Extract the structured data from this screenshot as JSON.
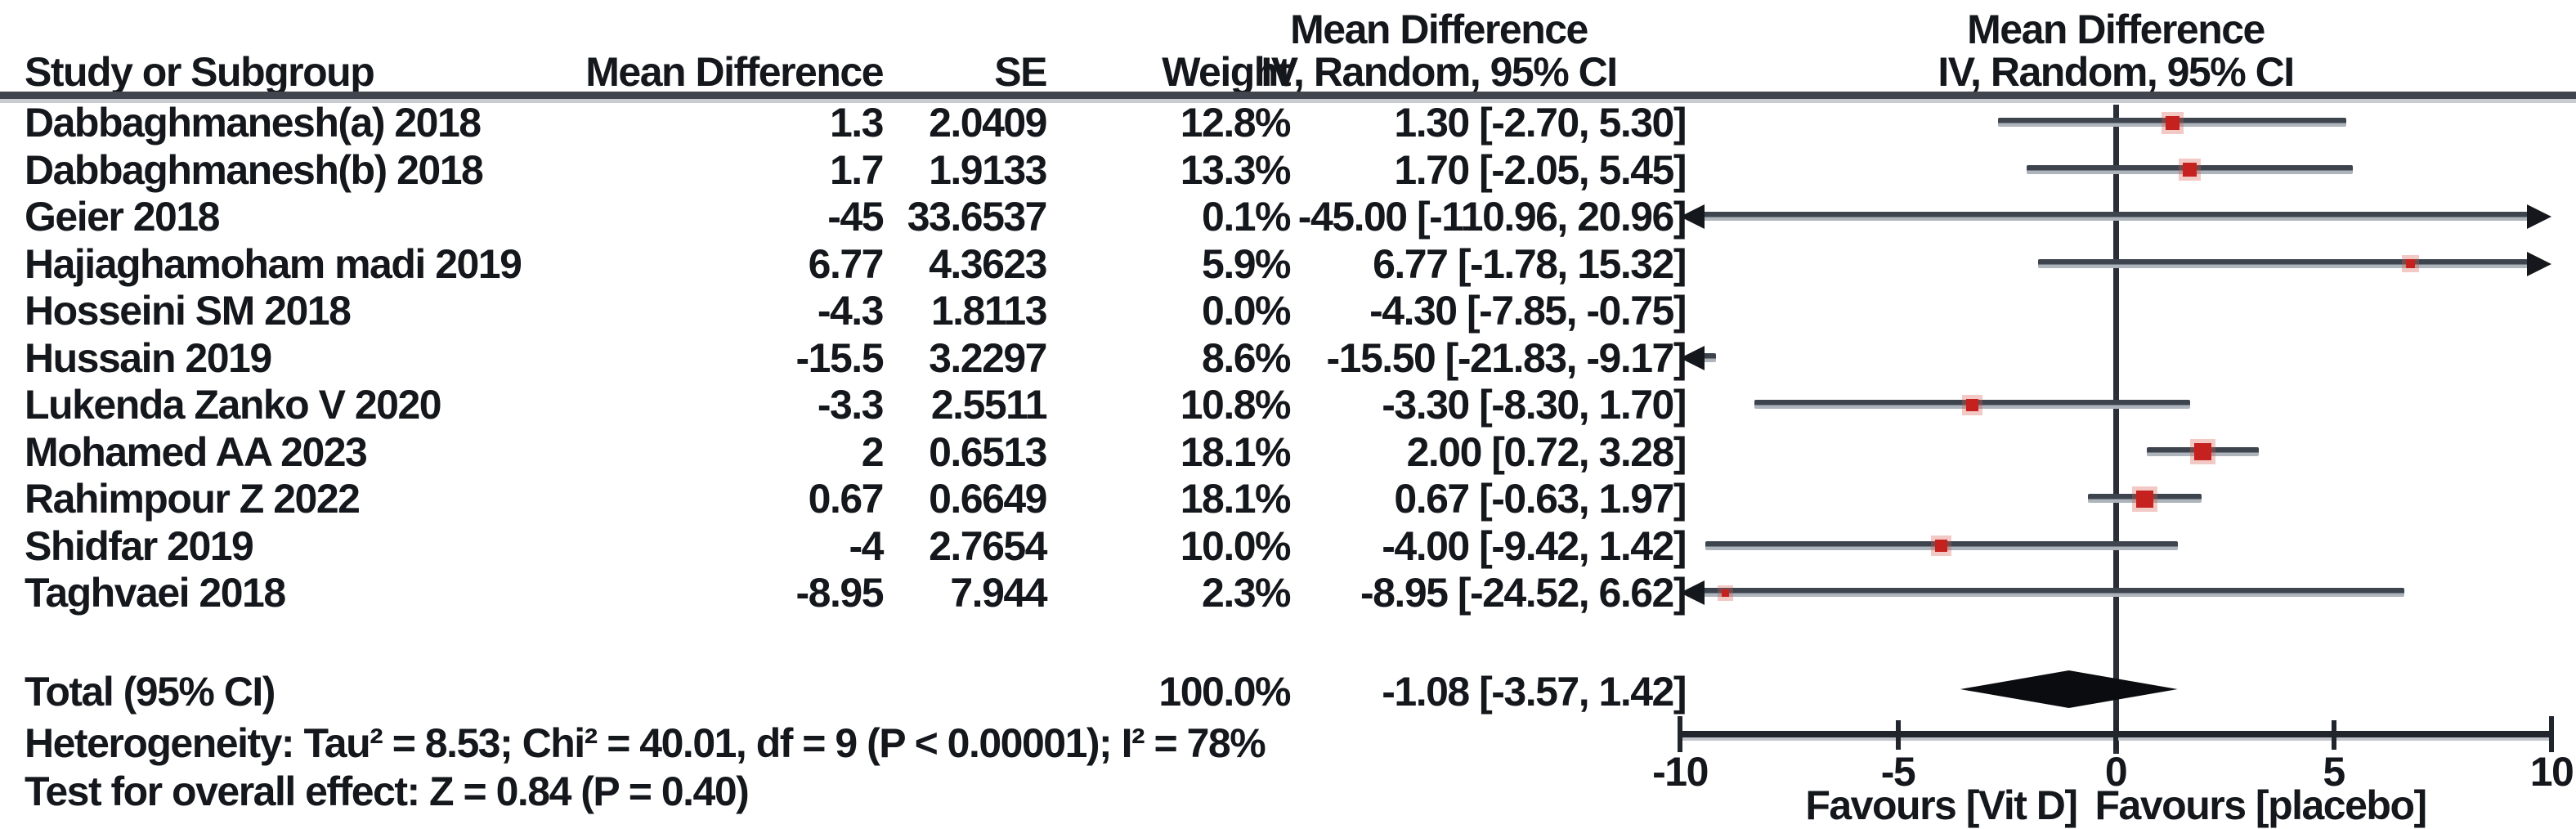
{
  "chart_data": {
    "type": "forest",
    "table_headers": {
      "study": "Study or Subgroup",
      "mean_difference": "Mean Difference",
      "se": "SE",
      "weight": "Weight",
      "effect_line1": "Mean Difference",
      "effect_line2": "IV, Random, 95% CI"
    },
    "studies": [
      {
        "name": "Dabbaghmanesh(a) 2018",
        "md_text": "1.3",
        "se_text": "2.0409",
        "weight_text": "12.8%",
        "ci_text": "1.30 [-2.70, 5.30]",
        "est": 1.3,
        "lo": -2.7,
        "hi": 5.3,
        "weight_pct": 12.8,
        "plotted": true
      },
      {
        "name": "Dabbaghmanesh(b) 2018",
        "md_text": "1.7",
        "se_text": "1.9133",
        "weight_text": "13.3%",
        "ci_text": "1.70 [-2.05, 5.45]",
        "est": 1.7,
        "lo": -2.05,
        "hi": 5.45,
        "weight_pct": 13.3,
        "plotted": true
      },
      {
        "name": "Geier 2018",
        "md_text": "-45",
        "se_text": "33.6537",
        "weight_text": "0.1%",
        "ci_text": "-45.00 [-110.96, 20.96]",
        "est": -45,
        "lo": -110.96,
        "hi": 20.96,
        "weight_pct": 0.1,
        "plotted": true
      },
      {
        "name": "Hajiaghamoham madi 2019",
        "md_text": "6.77",
        "se_text": "4.3623",
        "weight_text": "5.9%",
        "ci_text": "6.77 [-1.78, 15.32]",
        "est": 6.77,
        "lo": -1.78,
        "hi": 15.32,
        "weight_pct": 5.9,
        "plotted": true
      },
      {
        "name": "Hosseini SM 2018",
        "md_text": "-4.3",
        "se_text": "1.8113",
        "weight_text": "0.0%",
        "ci_text": "-4.30 [-7.85, -0.75]",
        "est": -4.3,
        "lo": -7.85,
        "hi": -0.75,
        "weight_pct": 0.0,
        "plotted": false
      },
      {
        "name": "Hussain 2019",
        "md_text": "-15.5",
        "se_text": "3.2297",
        "weight_text": "8.6%",
        "ci_text": "-15.50 [-21.83, -9.17]",
        "est": -15.5,
        "lo": -21.83,
        "hi": -9.17,
        "weight_pct": 8.6,
        "plotted": true
      },
      {
        "name": "Lukenda Zanko V 2020",
        "md_text": "-3.3",
        "se_text": "2.5511",
        "weight_text": "10.8%",
        "ci_text": "-3.30 [-8.30, 1.70]",
        "est": -3.3,
        "lo": -8.3,
        "hi": 1.7,
        "weight_pct": 10.8,
        "plotted": true
      },
      {
        "name": "Mohamed AA 2023",
        "md_text": "2",
        "se_text": "0.6513",
        "weight_text": "18.1%",
        "ci_text": "2.00 [0.72, 3.28]",
        "est": 2,
        "lo": 0.72,
        "hi": 3.28,
        "weight_pct": 18.1,
        "plotted": true
      },
      {
        "name": "Rahimpour Z 2022",
        "md_text": "0.67",
        "se_text": "0.6649",
        "weight_text": "18.1%",
        "ci_text": "0.67 [-0.63, 1.97]",
        "est": 0.67,
        "lo": -0.63,
        "hi": 1.97,
        "weight_pct": 18.1,
        "plotted": true
      },
      {
        "name": "Shidfar 2019",
        "md_text": "-4",
        "se_text": "2.7654",
        "weight_text": "10.0%",
        "ci_text": "-4.00 [-9.42, 1.42]",
        "est": -4,
        "lo": -9.42,
        "hi": 1.42,
        "weight_pct": 10.0,
        "plotted": true
      },
      {
        "name": "Taghvaei 2018",
        "md_text": "-8.95",
        "se_text": "7.944",
        "weight_text": "2.3%",
        "ci_text": "-8.95 [-24.52, 6.62]",
        "est": -8.95,
        "lo": -24.52,
        "hi": 6.62,
        "weight_pct": 2.3,
        "plotted": true
      }
    ],
    "total": {
      "label": "Total (95% CI)",
      "weight_text": "100.0%",
      "ci_text": "-1.08 [-3.57, 1.42]",
      "est": -1.08,
      "lo": -3.57,
      "hi": 1.42
    },
    "axis": {
      "min": -10,
      "max": 10,
      "ticks": [
        -10,
        -5,
        0,
        5,
        10
      ],
      "tick_labels": [
        "-10",
        "-5",
        "0",
        "5",
        "10"
      ]
    },
    "footnotes": {
      "heterogeneity": "Heterogeneity: Tau² = 8.53; Chi² = 40.01, df = 9 (P < 0.00001); I² = 78%",
      "overall_effect": "Test for overall effect: Z = 0.84 (P = 0.40)"
    },
    "favours": {
      "left": "Favours [Vit D]",
      "right": "Favours [placebo]"
    },
    "colors": {
      "marker": "#c5211e",
      "ci_line": "#3e444d",
      "ink": "#14171c",
      "diamond": "#0a0c0f"
    }
  }
}
